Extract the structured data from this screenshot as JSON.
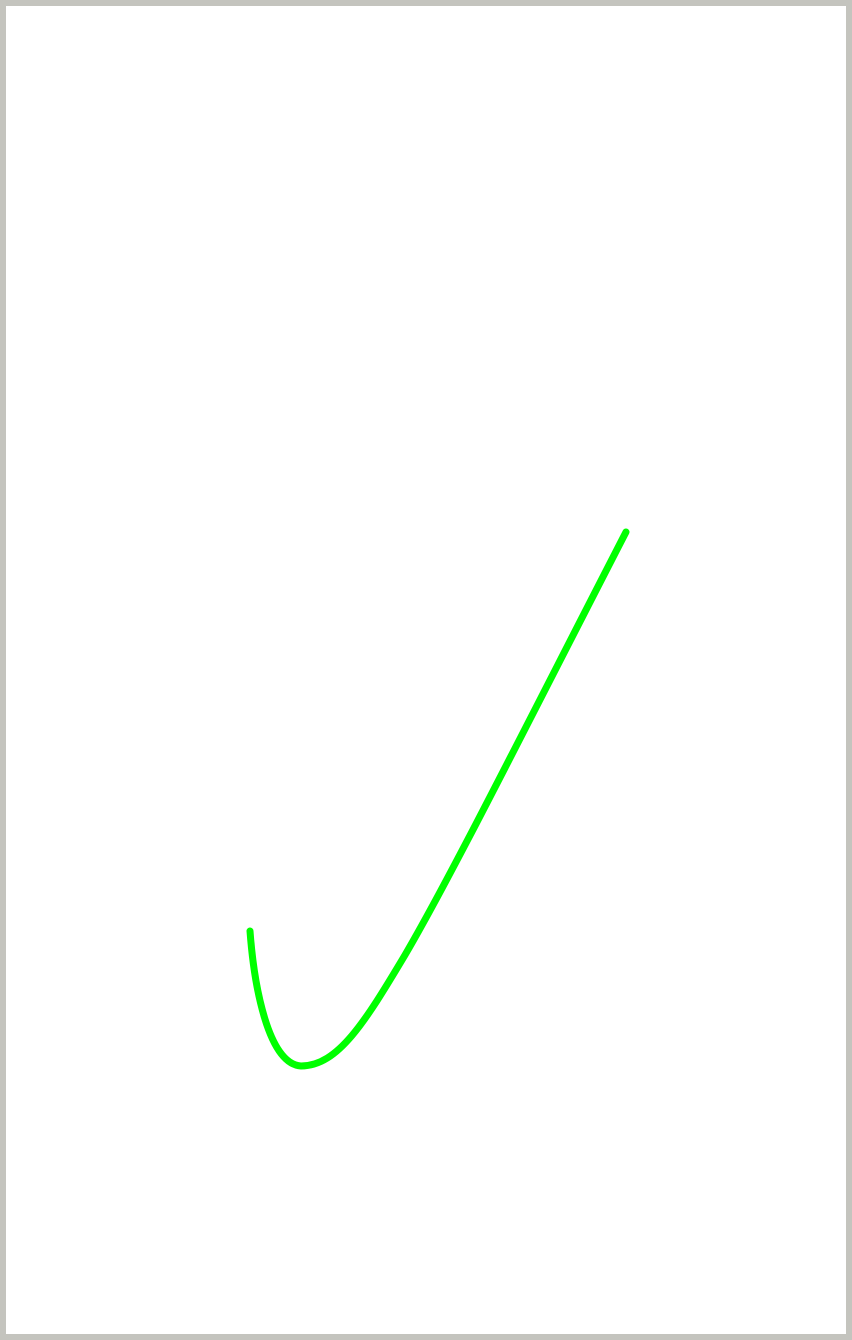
{
  "canvas": {
    "background": "#ffffff",
    "border_color": "#c4c4be"
  },
  "stroke": {
    "color": "#00ff00",
    "shape": "check-mark-curve"
  }
}
